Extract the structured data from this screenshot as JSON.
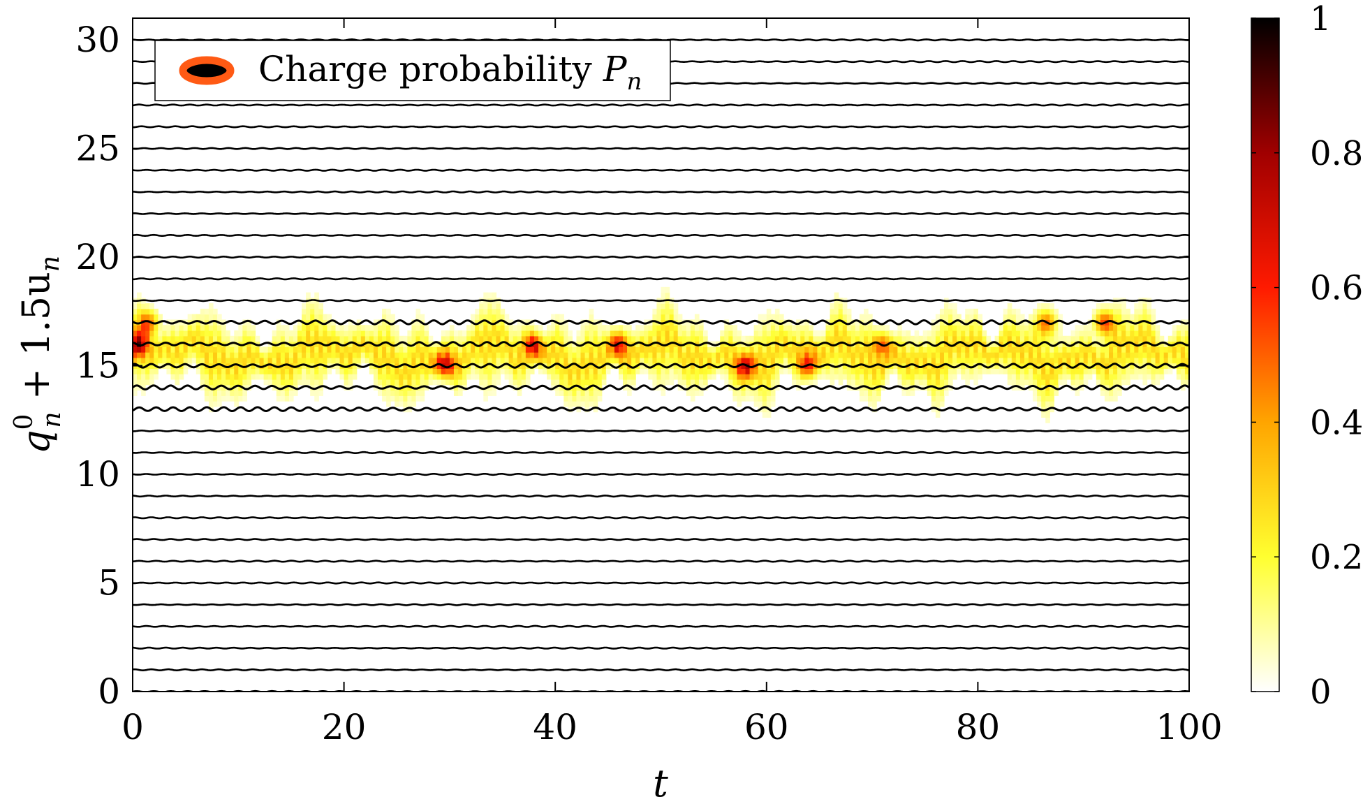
{
  "chart_data": {
    "type": "heatmap",
    "xlabel": "t",
    "ylabel": {
      "base": "q",
      "sup": "0",
      "sub": "n",
      "rest": " + 1.5u",
      "sub2": "n"
    },
    "xlim": [
      0,
      100
    ],
    "ylim": [
      0,
      31
    ],
    "xticks": [
      0,
      20,
      40,
      60,
      80,
      100
    ],
    "yticks": [
      0,
      5,
      10,
      15,
      20,
      25,
      30
    ],
    "grid": false,
    "legend": {
      "placement": "top-left",
      "label": "Charge probability",
      "symbol": "P",
      "symbol_sub": "n",
      "marker_fill": "#000000",
      "marker_edge": "#ff5a14"
    },
    "colorbar": {
      "range": [
        0,
        1
      ],
      "ticks": [
        0,
        0.2,
        0.4,
        0.6,
        0.8,
        1
      ],
      "tick_labels": [
        "0",
        "0.2",
        "0.4",
        "0.6",
        "0.8",
        "1"
      ],
      "colors": [
        "#ffffff",
        "#ffff30",
        "#ffa500",
        "#ff1a00",
        "#a00000",
        "#000000"
      ]
    },
    "sites": {
      "count": 31,
      "first": 0,
      "last": 30
    },
    "oscillation": {
      "active_sites": [
        13,
        14,
        15,
        16,
        17
      ],
      "amplitude_active": 0.09,
      "amplitude_rest": 0.025,
      "period": 1.6
    },
    "charge_band": {
      "center": 15.5,
      "low": 13,
      "high": 18
    },
    "hotspots": [
      {
        "t": 0.5,
        "n": 16,
        "p": 0.6
      },
      {
        "t": 1.5,
        "n": 17,
        "p": 0.45
      },
      {
        "t": 29.5,
        "n": 15,
        "p": 0.55
      },
      {
        "t": 38,
        "n": 16,
        "p": 0.5
      },
      {
        "t": 46,
        "n": 16,
        "p": 0.45
      },
      {
        "t": 58,
        "n": 15,
        "p": 0.5
      },
      {
        "t": 64,
        "n": 15,
        "p": 0.5
      },
      {
        "t": 71,
        "n": 16,
        "p": 0.45
      },
      {
        "t": 86.5,
        "n": 17,
        "p": 0.45
      },
      {
        "t": 92,
        "n": 17,
        "p": 0.55
      }
    ]
  }
}
